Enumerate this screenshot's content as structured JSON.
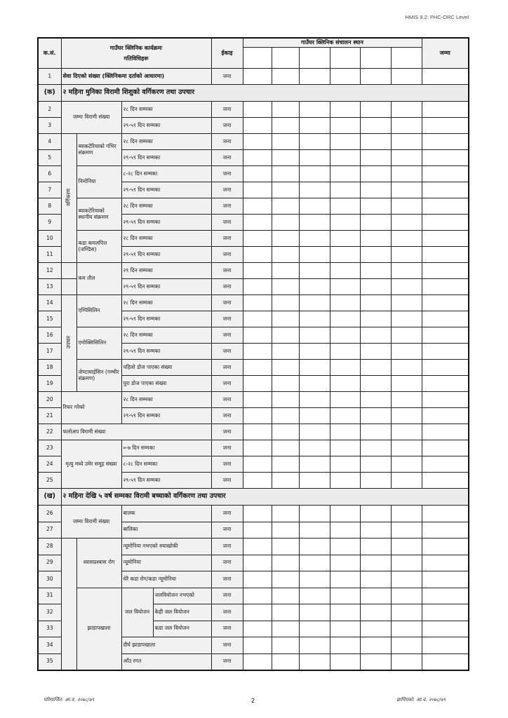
{
  "header": {
    "doc_code": "HMIS 9.2: PHC-ORC Level",
    "col_sn": "क.सं.",
    "col_activity_line1": "गाउँघर क्लिनिक कार्यक्रमः",
    "col_activity_line2": "गतिविधिहरू",
    "col_unit": "ईकाइ",
    "col_sites": "गाउँघर क्लिनिक संचालन स्थान",
    "col_total": "जम्मा"
  },
  "unit": "जना",
  "serials": [
    "1",
    "2",
    "3",
    "4",
    "5",
    "6",
    "7",
    "8",
    "9",
    "10",
    "11",
    "12",
    "13",
    "14",
    "15",
    "16",
    "17",
    "18",
    "19",
    "20",
    "21",
    "22",
    "23",
    "24",
    "25",
    "26",
    "27",
    "28",
    "29",
    "30",
    "31",
    "32",
    "33",
    "34",
    "35"
  ],
  "row1": "सेवा दिएको संख्या (क्लिनिकमा दर्ताको आधारमा)",
  "section_a": {
    "label": "(क)",
    "title": "२ महिना मुनिका विरामी शिशुको वर्गिकरण तथा उपचार"
  },
  "section_b": {
    "label": "(ख)",
    "title": "२ महिना देखि ५ वर्ष सम्मका विरामी बच्चाको वर्गिकरण तथा उपचार"
  },
  "a": {
    "total_sick": "जम्मा विरामी संख्या",
    "classification": "वर्गिकरण",
    "treatment": "उपचार",
    "psbi": "ब्याकटेरियाको गंभिर संक्रमण",
    "pneumonia": "निमोनिया",
    "lbi": "ब्याकटेरियाको स्थानीय संक्रमण",
    "jaundice": "कडा कमलपित्त (जण्डिस)",
    "lbw": "कम तौल",
    "ampicillin": "एम्पिसिलिन",
    "amoxicillin": "एमोक्सिसिलिन",
    "gentamicin": "जेण्टामाईसिन (गम्भीर संक्रमण)",
    "dose1": "पहिलो डोज पाएका संख्या",
    "dose_full": "पुरा डोज पाएका संख्या",
    "referred": "रिफर गरेको",
    "followup": "फलोअप विरामी संख्या",
    "deaths": "मृत्यु मध्ये उमेर समूह संख्या"
  },
  "ages": {
    "d28": "२८ दिन सम्मका",
    "d29_59": "२९-५९ दिन सम्मका",
    "d8_28": "८-२८ दिन सम्मका",
    "d29": "२९ दिन सम्मका",
    "d0_7": "०-७ दिन सम्मका"
  },
  "b": {
    "total_sick": "जम्मा विरामी संख्या",
    "boy": "बालक",
    "girl": "बालिका",
    "ari": "श्वासप्रश्वास रोग",
    "no_pneumonia": "न्यूमोनिया नभएको रुघाखोकी",
    "pneumonia": "न्यूमोनिया",
    "severe": "धेरै कडा रोग/कडा न्यूमोनिया",
    "diarrhoea": "झाडापखाला",
    "dehydration": "जल वियोजन",
    "no_dehyd": "जलवियोजन नभएको",
    "some_dehyd": "केही जल वियोजन",
    "severe_dehyd": "कडा जल वियोजन",
    "persistent": "दीर्घ झाडापखाला",
    "dysentery": "आँउ रगत"
  },
  "footer": {
    "revised": "परिमार्जित: आ.व. २०७८/७९",
    "page": "2",
    "printed": "छापिएको: आ.व. २०७८/७९"
  }
}
